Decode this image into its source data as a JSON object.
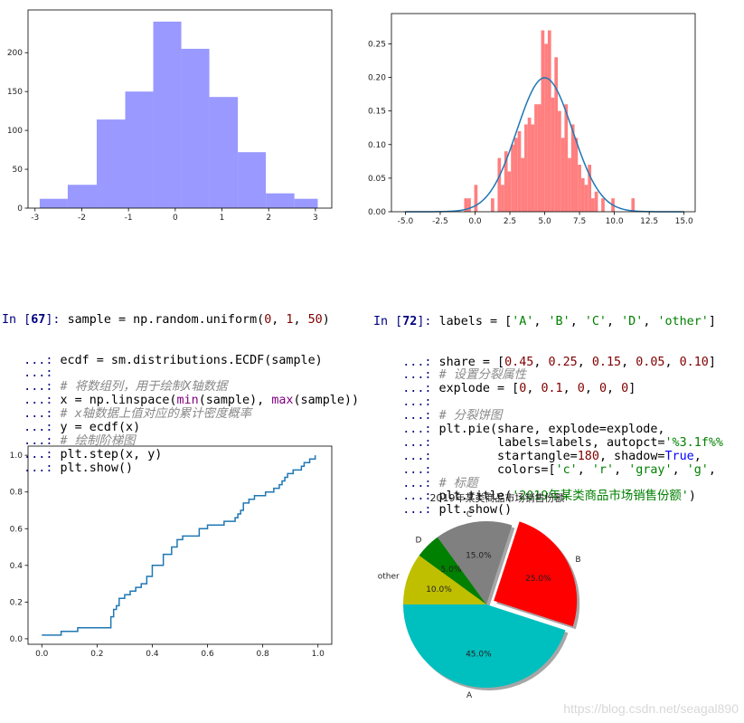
{
  "chart_data": [
    {
      "id": "hist_blue",
      "type": "bar",
      "title": "",
      "bins": [
        -2.9,
        -2.3,
        -1.68,
        -1.07,
        -0.47,
        0.13,
        0.73,
        1.34,
        1.94,
        2.55,
        3.05
      ],
      "counts": [
        12,
        30,
        114,
        150,
        240,
        205,
        143,
        72,
        19,
        12
      ],
      "xlim": [
        -3.15,
        3.35
      ],
      "ylim": [
        0,
        255
      ],
      "xticks": [
        -3,
        -2,
        -1,
        0,
        1,
        2,
        3
      ],
      "yticks": [
        0,
        50,
        100,
        150,
        200
      ],
      "color": "#9999ff"
    },
    {
      "id": "hist_pdf",
      "type": "bar",
      "title": "",
      "series": [
        {
          "name": "density-histogram",
          "color": "#ff7f7f",
          "bins": [
            -0.78,
            -0.54,
            -0.3,
            -0.06,
            0.18,
            0.42,
            0.66,
            0.9,
            1.14,
            1.38,
            1.62,
            1.86,
            2.1,
            2.34,
            2.58,
            2.82,
            3.06,
            3.3,
            3.54,
            3.78,
            4.02,
            4.26,
            4.5,
            4.74,
            4.98,
            5.22,
            5.46,
            5.7,
            5.94,
            6.18,
            6.42,
            6.66,
            6.9,
            7.14,
            7.38,
            7.62,
            7.86,
            8.1,
            8.34,
            8.58,
            8.82,
            9.06,
            9.3,
            9.54,
            9.78,
            10.02,
            10.26,
            10.5,
            10.74,
            10.98,
            11.22,
            11.46,
            11.7
          ],
          "density": [
            0.02,
            0.02,
            0.0,
            0.04,
            0.0,
            0.0,
            0.0,
            0.0,
            0.02,
            0.0,
            0.08,
            0.04,
            0.09,
            0.06,
            0.1,
            0.11,
            0.12,
            0.08,
            0.13,
            0.14,
            0.13,
            0.16,
            0.16,
            0.27,
            0.25,
            0.27,
            0.17,
            0.23,
            0.15,
            0.11,
            0.16,
            0.08,
            0.13,
            0.11,
            0.07,
            0.05,
            0.04,
            0.07,
            0.02,
            0.03,
            0.0,
            0.02,
            0.0,
            0.0,
            0.02,
            0.0,
            0.0,
            0.0,
            0.0,
            0.0,
            0.02,
            0.0
          ]
        },
        {
          "name": "normal-pdf",
          "color": "#1f77b4",
          "mu": 5,
          "sigma": 2
        }
      ],
      "xlim": [
        -6,
        15.8
      ],
      "ylim": [
        0,
        0.295
      ],
      "xticks": [
        -5.0,
        -2.5,
        0.0,
        2.5,
        5.0,
        7.5,
        10.0,
        12.5,
        15.0
      ],
      "yticks": [
        0.0,
        0.05,
        0.1,
        0.15,
        0.2,
        0.25
      ],
      "xtick_labels": [
        "-5.0",
        "-2.5",
        "0.0",
        "2.5",
        "5.0",
        "7.5",
        "10.0",
        "12.5",
        "15.0"
      ],
      "ytick_labels": [
        "0.00",
        "0.05",
        "0.10",
        "0.15",
        "0.20",
        "0.25"
      ]
    },
    {
      "id": "ecdf_step",
      "type": "line",
      "title": "",
      "x": [
        0.0,
        0.02,
        0.07,
        0.13,
        0.25,
        0.26,
        0.27,
        0.28,
        0.3,
        0.32,
        0.34,
        0.36,
        0.38,
        0.4,
        0.42,
        0.44,
        0.47,
        0.49,
        0.51,
        0.54,
        0.57,
        0.6,
        0.62,
        0.66,
        0.7,
        0.71,
        0.72,
        0.73,
        0.75,
        0.77,
        0.79,
        0.81,
        0.84,
        0.86,
        0.87,
        0.88,
        0.89,
        0.9,
        0.91,
        0.94,
        0.95,
        0.97,
        0.99
      ],
      "y": [
        0.02,
        0.02,
        0.04,
        0.06,
        0.12,
        0.16,
        0.18,
        0.22,
        0.24,
        0.26,
        0.28,
        0.3,
        0.34,
        0.4,
        0.4,
        0.46,
        0.5,
        0.54,
        0.56,
        0.56,
        0.6,
        0.62,
        0.62,
        0.64,
        0.66,
        0.68,
        0.7,
        0.74,
        0.76,
        0.78,
        0.78,
        0.8,
        0.82,
        0.84,
        0.86,
        0.88,
        0.9,
        0.9,
        0.92,
        0.94,
        0.96,
        0.98,
        1.0
      ],
      "xlim": [
        -0.05,
        1.05
      ],
      "ylim": [
        -0.03,
        1.05
      ],
      "xticks": [
        0.0,
        0.2,
        0.4,
        0.6,
        0.8,
        1.0
      ],
      "yticks": [
        0.0,
        0.2,
        0.4,
        0.6,
        0.8,
        1.0
      ],
      "xtick_labels": [
        "0.0",
        "0.2",
        "0.4",
        "0.6",
        "0.8",
        "1.0"
      ],
      "ytick_labels": [
        "0.0",
        "0.2",
        "0.4",
        "0.6",
        "0.8",
        "1.0"
      ],
      "color": "#1f77b4"
    },
    {
      "id": "pie_share",
      "type": "pie",
      "title": "2019年某类商品市场销售份额",
      "labels": [
        "A",
        "B",
        "C",
        "D",
        "other"
      ],
      "values": [
        0.45,
        0.25,
        0.15,
        0.05,
        0.1
      ],
      "pct_labels": [
        "45.0%",
        "25.0%",
        "15.0%",
        "5.0%",
        "10.0%"
      ],
      "explode": [
        0,
        0.1,
        0,
        0,
        0
      ],
      "colors": [
        "#00bfbf",
        "#ff0000",
        "#808080",
        "#008000",
        "#bfbf00"
      ],
      "startangle": 180,
      "shadow": true
    }
  ],
  "cells": {
    "in67": {
      "prompt_in": "In [",
      "prompt_num": "67",
      "prompt_close": "]:",
      "cont": "...:",
      "lines": [
        "sample = np.random.uniform(0, 1, 50)",
        "ecdf = sm.distributions.ECDF(sample)",
        "",
        "# 将数组列，用于绘制X轴数据",
        "x = np.linspace(min(sample), max(sample))",
        "# x轴数据上值对应的累计密度概率",
        "y = ecdf(x)",
        "# 绘制阶梯图",
        "plt.step(x, y)",
        "plt.show()"
      ]
    },
    "in72": {
      "prompt_in": "In [",
      "prompt_num": "72",
      "prompt_close": "]:",
      "cont": "...:",
      "lines": [
        "labels = ['A', 'B', 'C', 'D', 'other']",
        "share = [0.45, 0.25, 0.15, 0.05, 0.10]",
        "# 设置分裂属性",
        "explode = [0, 0.1, 0, 0, 0]",
        "",
        "# 分裂饼图",
        "plt.pie(share, explode=explode,",
        "        labels=labels, autopct='%3.1f%%",
        "        startangle=180, shadow=True,",
        "        colors=['c', 'r', 'gray', 'g',",
        "# 标题",
        "plt.title('2019年某类商品市场销售份额')",
        "plt.show()"
      ]
    }
  },
  "watermark": "https://blog.csdn.net/seagal890"
}
